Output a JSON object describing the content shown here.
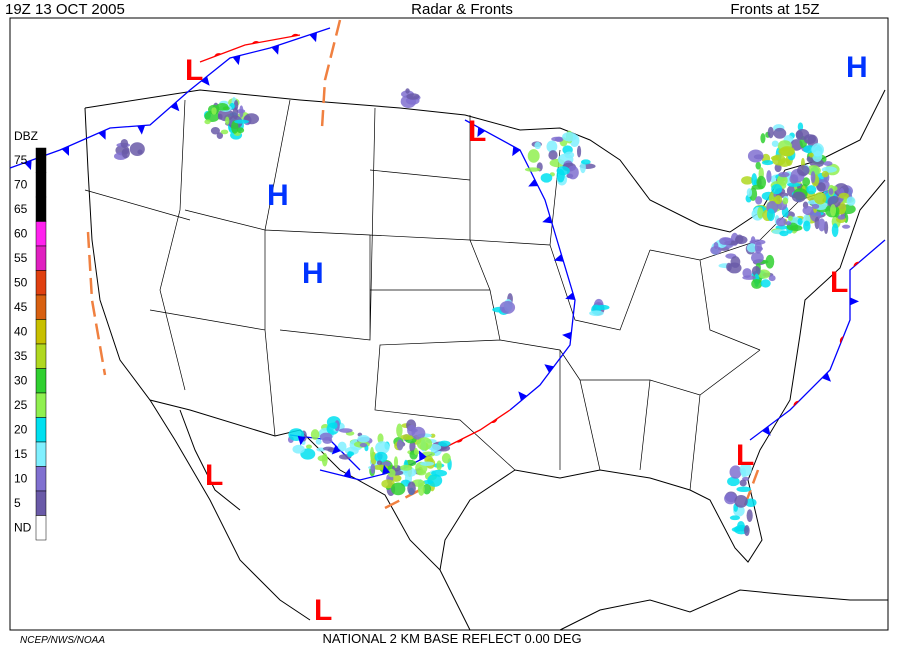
{
  "header": {
    "left": "19Z  13 OCT  2005",
    "center": "Radar & Fronts",
    "right": "Fronts at 15Z"
  },
  "legend": {
    "title": "DBZ",
    "levels": [
      {
        "label": "75",
        "color": "#000000"
      },
      {
        "label": "70",
        "color": "#000000"
      },
      {
        "label": "65",
        "color": "#000000"
      },
      {
        "label": "60",
        "color": "#ff22ee"
      },
      {
        "label": "55",
        "color": "#e020c0"
      },
      {
        "label": "50",
        "color": "#e04010"
      },
      {
        "label": "45",
        "color": "#d86010"
      },
      {
        "label": "40",
        "color": "#c8c000"
      },
      {
        "label": "35",
        "color": "#b0d820"
      },
      {
        "label": "30",
        "color": "#30d030"
      },
      {
        "label": "25",
        "color": "#90f050"
      },
      {
        "label": "20",
        "color": "#00e0f0"
      },
      {
        "label": "15",
        "color": "#80f0ff"
      },
      {
        "label": "10",
        "color": "#8070d0"
      },
      {
        "label": "5",
        "color": "#6a5aa8"
      },
      {
        "label": "ND",
        "color": "#ffffff"
      }
    ]
  },
  "pressure_centers": [
    {
      "label": "L",
      "color": "#ff0000"
    },
    {
      "label": "H",
      "color": "#0033ff"
    },
    {
      "label": "H",
      "color": "#0033ff"
    },
    {
      "label": "H",
      "color": "#0033ff"
    },
    {
      "label": "L",
      "color": "#ff0000"
    },
    {
      "label": "L",
      "color": "#ff0000"
    },
    {
      "label": "L",
      "color": "#ff0000"
    },
    {
      "label": "L",
      "color": "#ff0000"
    },
    {
      "label": "L",
      "color": "#ff0000"
    }
  ],
  "footer": {
    "left": "NCEP/NWS/NOAA",
    "center": "NATIONAL 2 KM BASE REFLECT 0.00 DEG"
  }
}
